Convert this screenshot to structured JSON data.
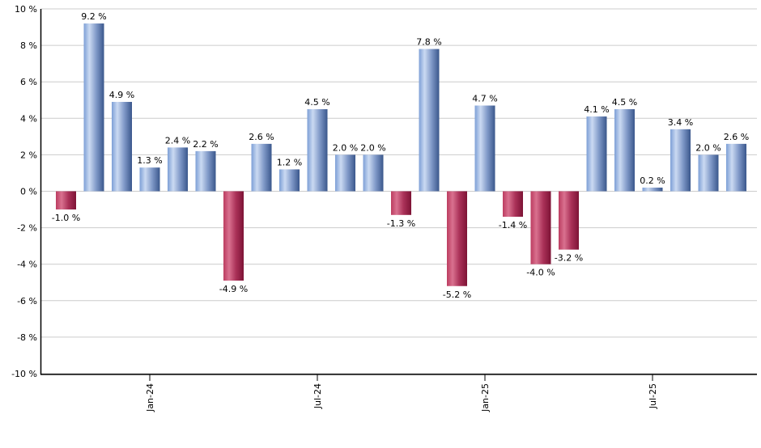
{
  "chart_data": {
    "type": "bar",
    "title": "",
    "xlabel": "",
    "ylabel": "",
    "unit": "%",
    "grid": true,
    "legend_position": "none",
    "ylim": [
      -10,
      10
    ],
    "ytick_step": 2,
    "ytick_labels": [
      "10 %",
      "8 %",
      "6 %",
      "4 %",
      "2 %",
      "0 %",
      "-2 %",
      "-4 %",
      "-6 %",
      "-8 %",
      "-10 %"
    ],
    "values": [
      -1.0,
      9.2,
      4.9,
      1.3,
      2.4,
      2.2,
      -4.9,
      2.6,
      1.2,
      4.5,
      2.0,
      2.0,
      -1.3,
      7.8,
      -5.2,
      4.7,
      -1.4,
      -4.0,
      -3.2,
      4.1,
      4.5,
      0.2,
      3.4,
      2.0,
      2.6
    ],
    "bar_labels": [
      "-1.0 %",
      "9.2 %",
      "4.9 %",
      "1.3 %",
      "2.4 %",
      "2.2 %",
      "-4.9 %",
      "2.6 %",
      "1.2 %",
      "4.5 %",
      "2.0 %",
      "2.0 %",
      "-1.3 %",
      "7.8 %",
      "-5.2 %",
      "4.7 %",
      "-1.4 %",
      "-4.0 %",
      "-3.2 %",
      "4.1 %",
      "4.5 %",
      "0.2 %",
      "3.4 %",
      "2.0 %",
      "2.6 %"
    ],
    "x_ticks": [
      {
        "index": 3,
        "label": "Jan-24"
      },
      {
        "index": 9,
        "label": "Jul-24"
      },
      {
        "index": 15,
        "label": "Jan-25"
      },
      {
        "index": 21,
        "label": "Jul-25"
      }
    ],
    "colors": {
      "positive_gradient": [
        {
          "o": 0,
          "c": "#7d9fd6"
        },
        {
          "o": 0.28,
          "c": "#cbdaf2"
        },
        {
          "o": 0.62,
          "c": "#8099c8"
        },
        {
          "o": 1,
          "c": "#3a578c"
        }
      ],
      "negative_gradient": [
        {
          "o": 0,
          "c": "#bc3c60"
        },
        {
          "o": 0.28,
          "c": "#d9718f"
        },
        {
          "o": 0.62,
          "c": "#aa3158"
        },
        {
          "o": 1,
          "c": "#7d1335"
        }
      ],
      "gridline": "#cccccc",
      "axis": "#000000",
      "tick": "#000000",
      "label_text": "#000000",
      "background": "#ffffff"
    }
  }
}
